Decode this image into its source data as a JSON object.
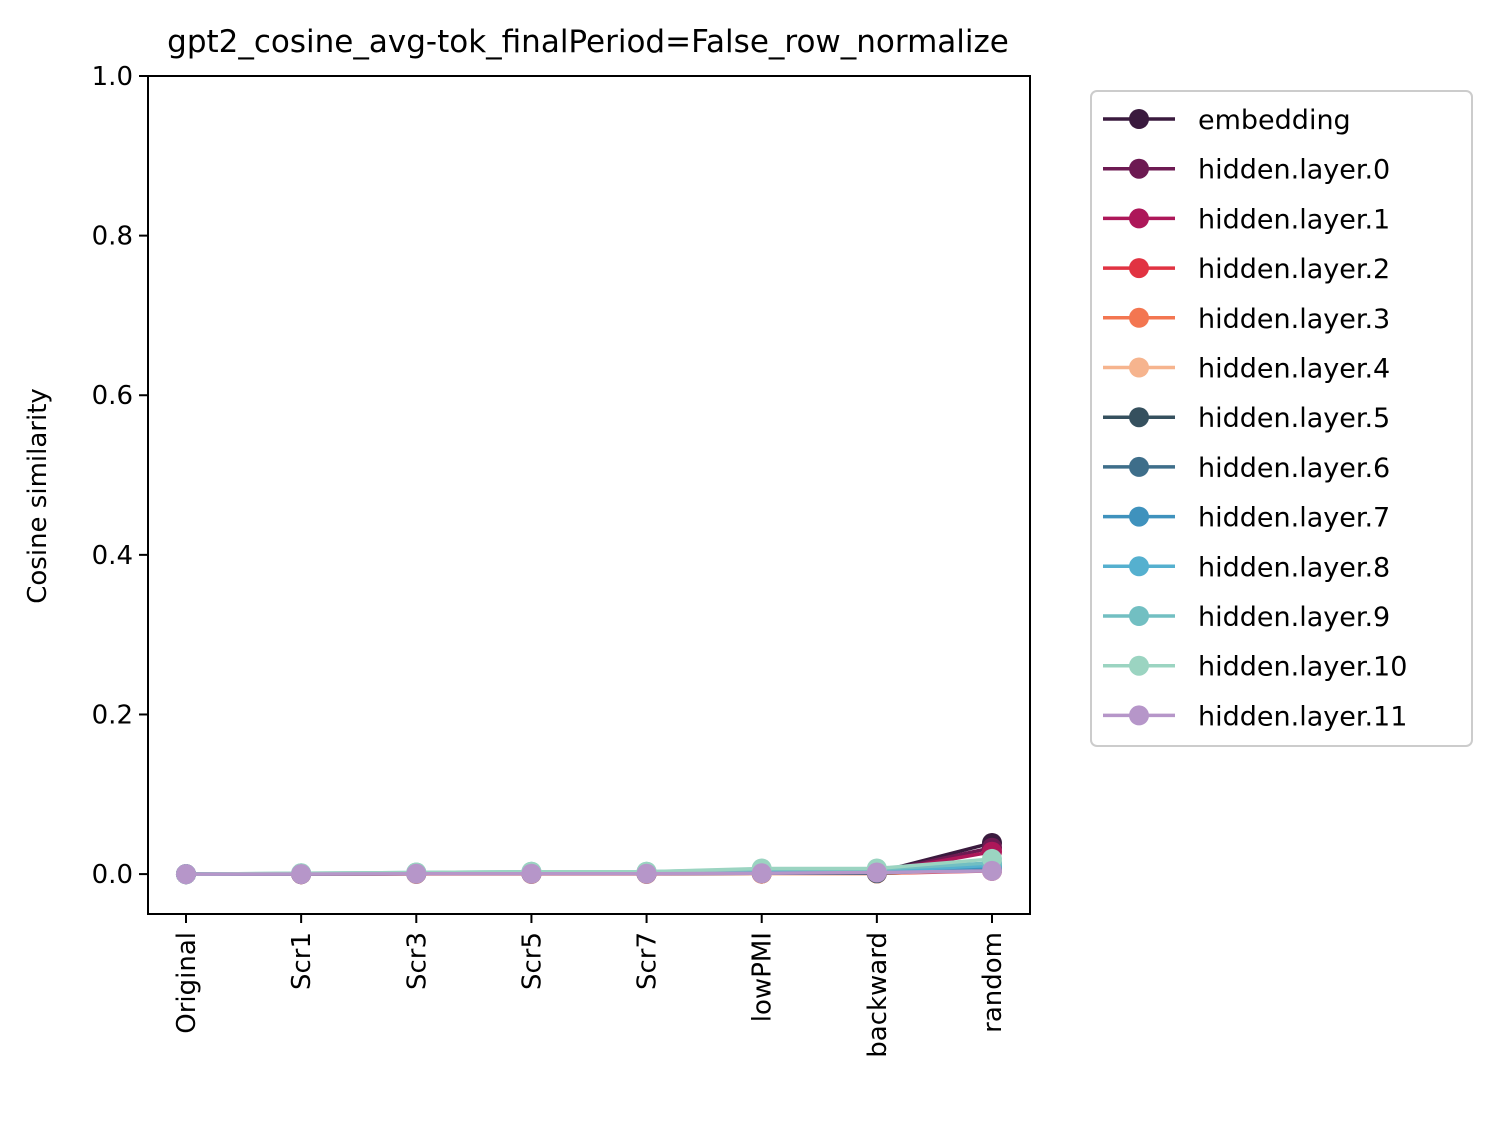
{
  "chart_data": {
    "type": "line",
    "title": "gpt2_cosine_avg-tok_finalPeriod=False_row_normalize",
    "xlabel": "",
    "ylabel": "Cosine similarity",
    "categories": [
      "Original",
      "Scr1",
      "Scr3",
      "Scr5",
      "Scr7",
      "lowPMI",
      "backward",
      "random"
    ],
    "ylim": [
      -0.05,
      1.0
    ],
    "yticks": [
      "0.0",
      "0.2",
      "0.4",
      "0.6",
      "0.8",
      "1.0"
    ],
    "ytick_values": [
      0.0,
      0.2,
      0.4,
      0.6,
      0.8,
      1.0
    ],
    "grid": false,
    "legend_position": "outside-right",
    "series": [
      {
        "name": "embedding",
        "color": "#3a1a3e",
        "values": [
          0.0,
          0.0,
          0.0005,
          0.0005,
          0.0005,
          0.001,
          0.002,
          0.039
        ]
      },
      {
        "name": "hidden.layer.0",
        "color": "#6d1a52",
        "values": [
          0.0,
          0.0,
          0.0005,
          0.0005,
          0.0005,
          0.001,
          0.002,
          0.033
        ]
      },
      {
        "name": "hidden.layer.1",
        "color": "#ad1759",
        "values": [
          0.0,
          0.0,
          0.0005,
          0.0005,
          0.0005,
          0.001,
          0.002,
          0.028
        ]
      },
      {
        "name": "hidden.layer.2",
        "color": "#e13342",
        "values": [
          0.0,
          0.0,
          0.0003,
          0.0003,
          0.0003,
          0.0005,
          0.0008,
          0.004
        ]
      },
      {
        "name": "hidden.layer.3",
        "color": "#f37651",
        "values": [
          0.0,
          0.0,
          0.0003,
          0.0003,
          0.0003,
          0.0005,
          0.0008,
          0.005
        ]
      },
      {
        "name": "hidden.layer.4",
        "color": "#f6b48e",
        "values": [
          0.0,
          0.0,
          0.0003,
          0.0003,
          0.0003,
          0.0005,
          0.0008,
          0.006
        ]
      },
      {
        "name": "hidden.layer.5",
        "color": "#35505e",
        "values": [
          0.0,
          0.0,
          0.0005,
          0.0005,
          0.0005,
          0.001,
          0.001,
          0.007
        ]
      },
      {
        "name": "hidden.layer.6",
        "color": "#3e6e8a",
        "values": [
          0.0,
          0.0005,
          0.001,
          0.001,
          0.001,
          0.002,
          0.002,
          0.008
        ]
      },
      {
        "name": "hidden.layer.7",
        "color": "#3f92bd",
        "values": [
          0.0,
          0.0005,
          0.001,
          0.001,
          0.001,
          0.002,
          0.003,
          0.009
        ]
      },
      {
        "name": "hidden.layer.8",
        "color": "#55b0cf",
        "values": [
          0.0,
          0.0005,
          0.001,
          0.002,
          0.002,
          0.003,
          0.004,
          0.011
        ]
      },
      {
        "name": "hidden.layer.9",
        "color": "#72bfc2",
        "values": [
          0.0,
          0.001,
          0.002,
          0.003,
          0.003,
          0.006,
          0.006,
          0.014
        ]
      },
      {
        "name": "hidden.layer.10",
        "color": "#9bd4c1",
        "values": [
          0.0,
          0.001,
          0.002,
          0.003,
          0.003,
          0.007,
          0.007,
          0.019
        ]
      },
      {
        "name": "hidden.layer.11",
        "color": "#b696c9",
        "values": [
          0.0,
          0.0,
          0.0005,
          0.0005,
          0.0005,
          0.001,
          0.002,
          0.004
        ]
      }
    ]
  }
}
